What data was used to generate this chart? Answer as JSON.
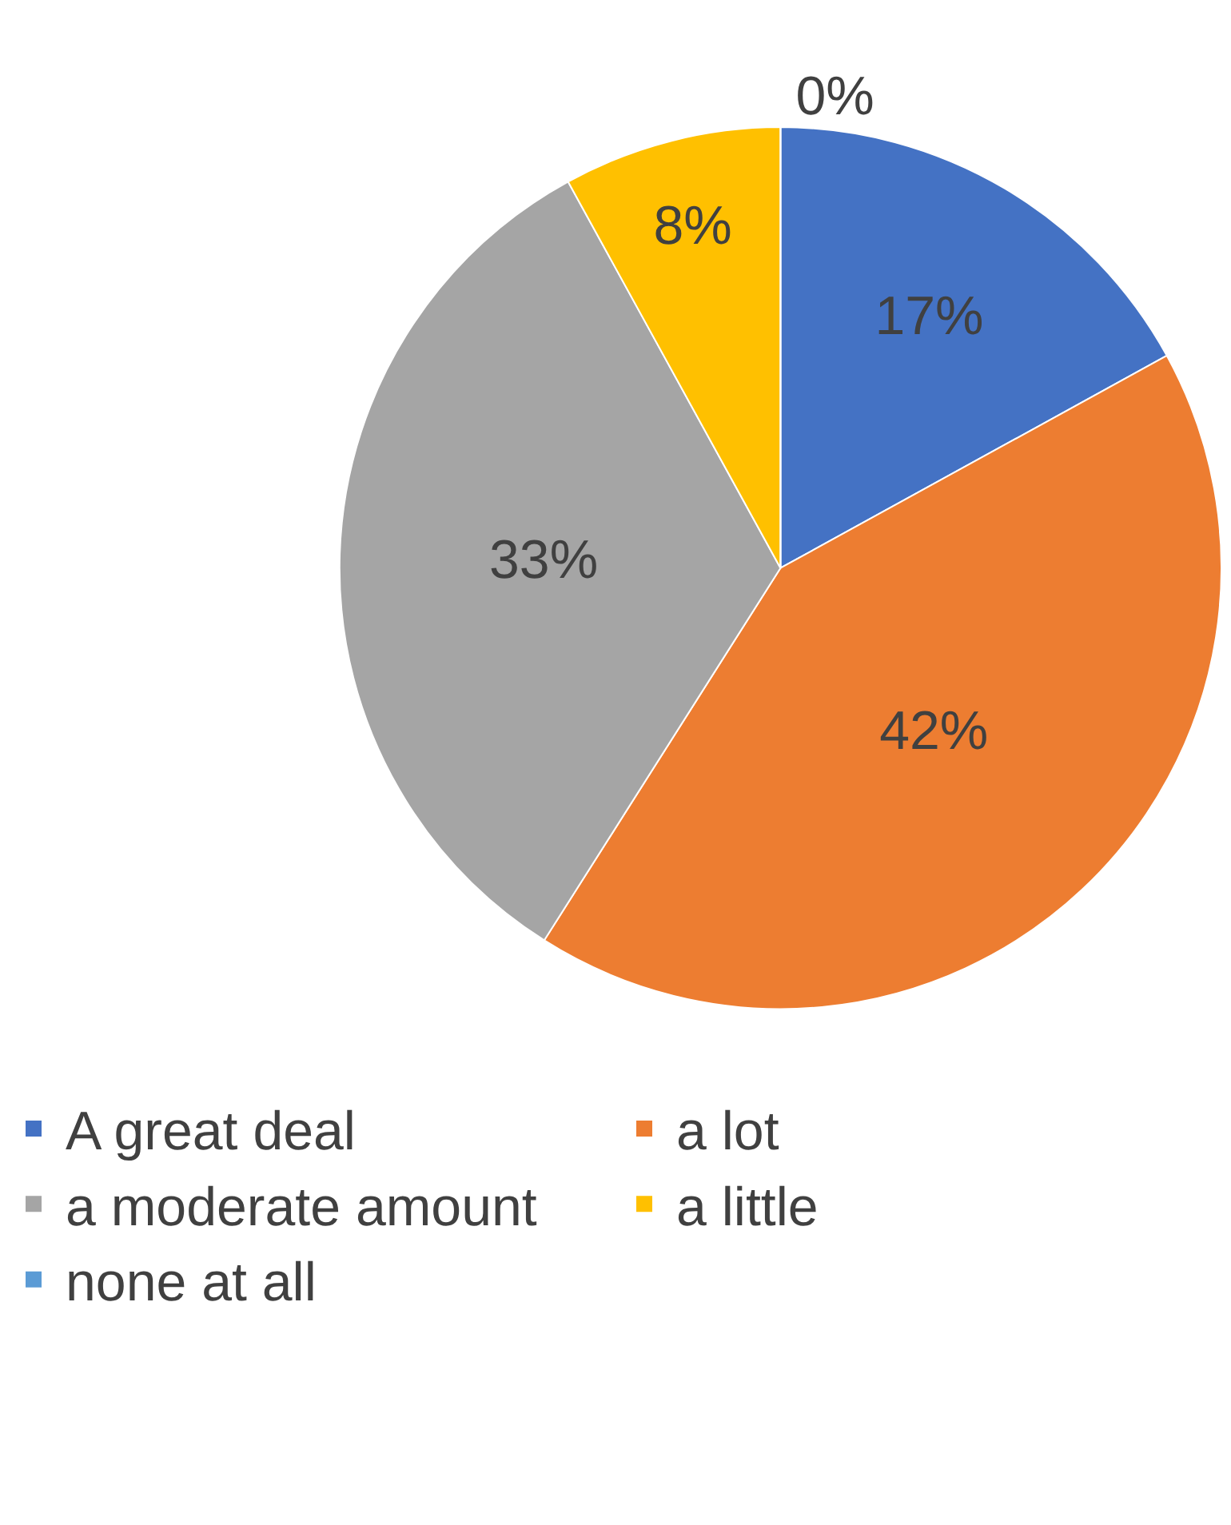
{
  "chart_data": {
    "type": "pie",
    "categories": [
      "A great deal",
      "a lot",
      "a moderate amount",
      "a little",
      "none at all"
    ],
    "values": [
      17,
      42,
      33,
      8,
      0
    ],
    "value_labels": [
      "17%",
      "42%",
      "33%",
      "8%",
      "0%"
    ],
    "colors": [
      "#4472c4",
      "#ed7d31",
      "#a5a5a5",
      "#ffc000",
      "#5b9bd5"
    ],
    "legend": "bottom"
  }
}
